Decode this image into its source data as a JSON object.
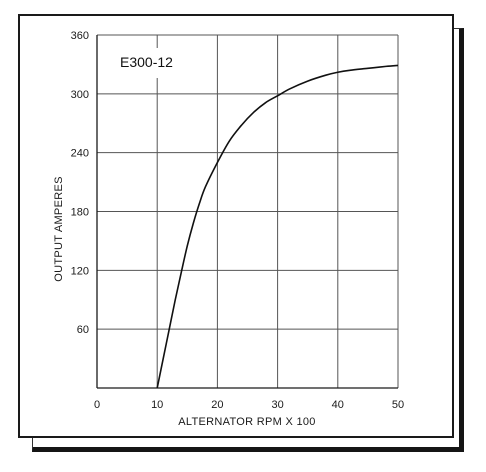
{
  "chart_data": {
    "type": "line",
    "title": "E300-12",
    "xlabel": "ALTERNATOR RPM X 100",
    "ylabel": "OUTPUT AMPERES",
    "xlim": [
      0,
      50
    ],
    "ylim": [
      0,
      360
    ],
    "xticks": [
      0,
      10,
      20,
      30,
      40,
      50
    ],
    "yticks": [
      60,
      120,
      180,
      240,
      300,
      360
    ],
    "grid": true,
    "series": [
      {
        "x": [
          10,
          11,
          12,
          13,
          14,
          15,
          16,
          17,
          18,
          20,
          22,
          24,
          26,
          28,
          30,
          32,
          35,
          38,
          40,
          42,
          45,
          48,
          50
        ],
        "values": [
          0,
          30,
          60,
          90,
          118,
          145,
          168,
          188,
          205,
          230,
          252,
          268,
          281,
          291,
          298,
          305,
          313,
          319,
          322,
          324,
          326,
          328,
          329
        ]
      }
    ]
  }
}
